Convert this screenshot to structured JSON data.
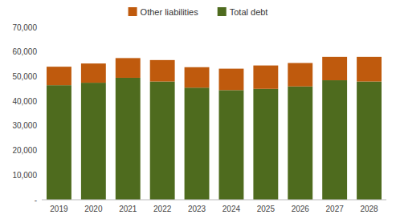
{
  "chart_data": {
    "type": "bar",
    "stacked": true,
    "grid": false,
    "legend": "top",
    "categories": [
      "2019",
      "2020",
      "2021",
      "2022",
      "2023",
      "2024",
      "2025",
      "2026",
      "2027",
      "2028"
    ],
    "series": [
      {
        "name": "Total debt",
        "color": "#4e6b1e",
        "values": [
          46500,
          47500,
          49500,
          48000,
          45500,
          44500,
          45000,
          46000,
          48500,
          48000
        ]
      },
      {
        "name": "Other liabilities",
        "color": "#bf5a0d",
        "values": [
          7500,
          7800,
          8000,
          8700,
          8300,
          8700,
          9500,
          9500,
          9500,
          10000
        ]
      }
    ],
    "ylim": [
      0,
      70000
    ],
    "yticks": [
      {
        "value": 0,
        "label": "-"
      },
      {
        "value": 10000,
        "label": "10,000"
      },
      {
        "value": 20000,
        "label": "20,000"
      },
      {
        "value": 30000,
        "label": "30,000"
      },
      {
        "value": 40000,
        "label": "40,000"
      },
      {
        "value": 50000,
        "label": "50,000"
      },
      {
        "value": 60000,
        "label": "60,000"
      },
      {
        "value": 70000,
        "label": "70,000"
      }
    ]
  }
}
